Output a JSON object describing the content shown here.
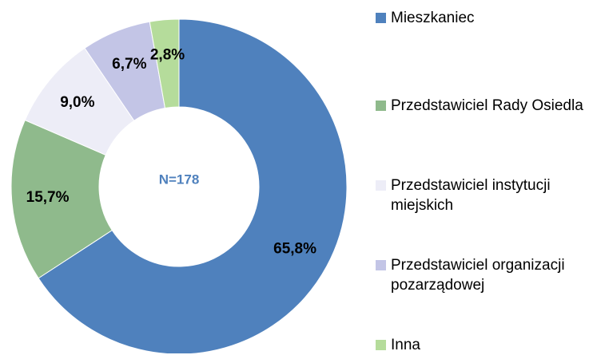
{
  "chart_data": {
    "type": "donut",
    "categories": [
      "Mieszkaniec",
      "Przedstawiciel Rady Osiedla",
      "Przedstawiciel instytucji miejskich",
      "Przedstawiciel organizacji pozarządowej",
      "Inna"
    ],
    "values": [
      65.8,
      15.7,
      9.0,
      6.7,
      2.8
    ],
    "value_labels": [
      "65,8%",
      "15,7%",
      "9,0%",
      "6,7%",
      "2,8%"
    ],
    "colors": [
      "#4f81bd",
      "#8fba8c",
      "#ededf7",
      "#c3c5e6",
      "#b5dc9b"
    ],
    "annotation": "N=178",
    "legend": "right"
  }
}
